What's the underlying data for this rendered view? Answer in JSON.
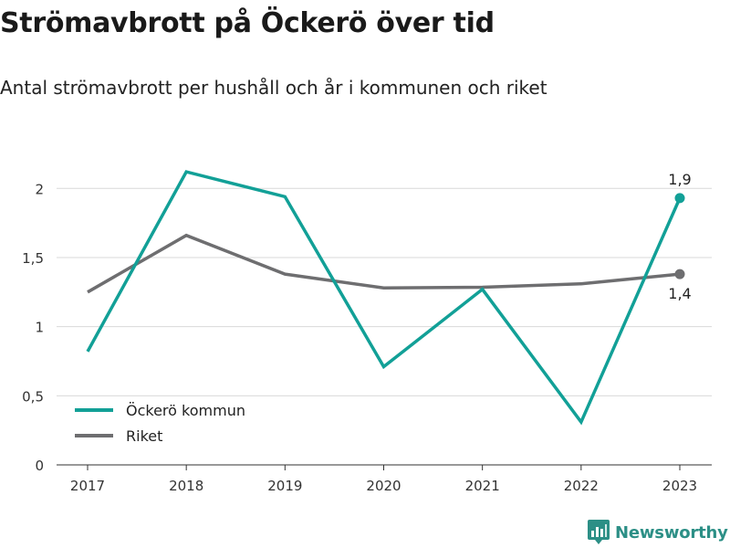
{
  "title": "Strömavbrott på Öckerö över tid",
  "subtitle": "Antal strömavbrott per hushåll och år i kommunen och riket",
  "brand": {
    "name": "Newsworthy",
    "logo_icon": "newsworthy-logo-icon"
  },
  "chart_data": {
    "type": "line",
    "x": [
      "2017",
      "2018",
      "2019",
      "2020",
      "2021",
      "2022",
      "2023"
    ],
    "ylim": [
      0,
      2.2
    ],
    "yticks": [
      0,
      0.5,
      1,
      1.5,
      2
    ],
    "ytick_labels": [
      "0",
      "0,5",
      "1",
      "1,5",
      "2"
    ],
    "grid": true,
    "legend_position": "bottom-left",
    "series": [
      {
        "name": "Öckerö kommun",
        "color": "#12a097",
        "values": [
          0.82,
          2.12,
          1.94,
          0.71,
          1.27,
          0.31,
          1.93
        ],
        "end_label": "1,9"
      },
      {
        "name": "Riket",
        "color": "#6e6e70",
        "values": [
          1.25,
          1.66,
          1.38,
          1.28,
          1.285,
          1.31,
          1.38
        ],
        "end_label": "1,4"
      }
    ]
  }
}
